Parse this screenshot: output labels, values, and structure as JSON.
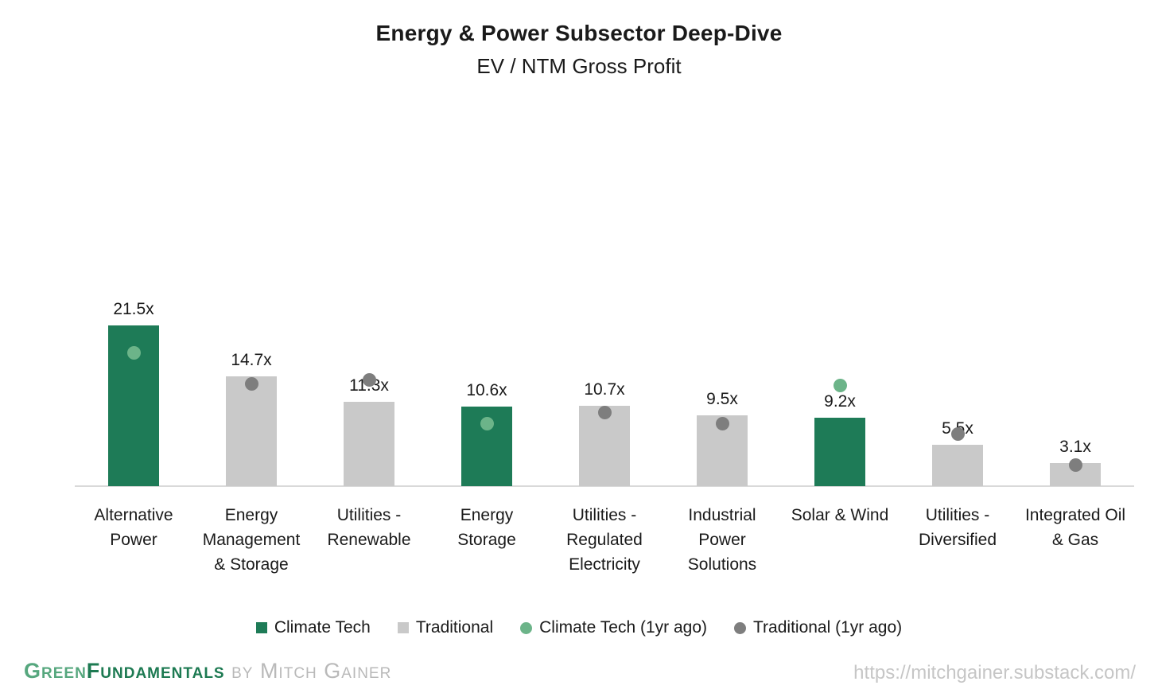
{
  "chart_data": {
    "type": "bar",
    "title": "Energy & Power Subsector Deep-Dive",
    "subtitle": "EV / NTM Gross Profit",
    "unit_suffix": "x",
    "ylim": [
      0,
      23
    ],
    "grid": false,
    "legend_position": "bottom",
    "axis_color": "#d9d9d9",
    "categories": [
      "Alternative Power",
      "Energy Management & Storage",
      "Utilities - Renewable",
      "Energy Storage",
      "Utilities - Regulated Electricity",
      "Industrial Power Solutions",
      "Solar & Wind",
      "Utilities - Diversified",
      "Integrated Oil & Gas"
    ],
    "categories_display": [
      "Alternative\nPower",
      "Energy\nManagement\n& Storage",
      "Utilities -\nRenewable",
      "Energy\nStorage",
      "Utilities -\nRegulated\nElectricity",
      "Industrial\nPower\nSolutions",
      "Solar & Wind",
      "Utilities -\nDiversified",
      "Integrated Oil\n& Gas"
    ],
    "value_labels": [
      "21.5x",
      "14.7x",
      "11.3x",
      "10.6x",
      "10.7x",
      "9.5x",
      "9.2x",
      "5.5x",
      "3.1x"
    ],
    "series": [
      {
        "name": "Climate Tech",
        "type": "bar",
        "color": "#1e7b57",
        "values": [
          21.5,
          null,
          null,
          10.6,
          null,
          null,
          9.2,
          null,
          null
        ]
      },
      {
        "name": "Traditional",
        "type": "bar",
        "color": "#c9c9c9",
        "values": [
          null,
          14.7,
          11.3,
          null,
          10.7,
          9.5,
          null,
          5.5,
          3.1
        ]
      },
      {
        "name": "Climate Tech (1yr ago)",
        "type": "dot",
        "color": "#6cb489",
        "values": [
          17.8,
          null,
          null,
          8.4,
          null,
          null,
          13.5,
          null,
          null
        ]
      },
      {
        "name": "Traditional (1yr ago)",
        "type": "dot",
        "color": "#7e7e7e",
        "values": [
          null,
          13.7,
          14.2,
          null,
          9.8,
          8.4,
          null,
          7.0,
          2.8
        ]
      }
    ]
  },
  "footer": {
    "brand_green": "Green",
    "brand_rest": "Fundamentals",
    "byline": " by Mitch Gainer",
    "url": "https://mitchgainer.substack.com/",
    "colors": {
      "brand_green_light": "#56a77e",
      "brand_green_dark": "#1d7a52",
      "byline_gray": "#b9b9b9",
      "url_gray": "#c6c6c6"
    }
  }
}
